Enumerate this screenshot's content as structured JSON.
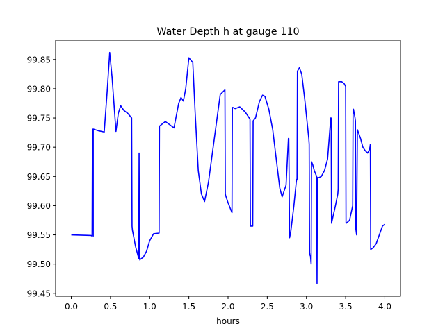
{
  "chart_data": {
    "type": "line",
    "title": "Water Depth h at gauge 110",
    "xlabel": "hours",
    "ylabel": "",
    "xlim": [
      -0.2,
      4.2
    ],
    "ylim": [
      99.445,
      99.883
    ],
    "grid": false,
    "xticks": [
      0.0,
      0.5,
      1.0,
      1.5,
      2.0,
      2.5,
      3.0,
      3.5,
      4.0
    ],
    "xtick_labels": [
      "0.0",
      "0.5",
      "1.0",
      "1.5",
      "2.0",
      "2.5",
      "3.0",
      "3.5",
      "4.0"
    ],
    "yticks": [
      99.45,
      99.5,
      99.55,
      99.6,
      99.65,
      99.7,
      99.75,
      99.8,
      99.85
    ],
    "ytick_labels": [
      "99.45",
      "99.50",
      "99.55",
      "99.60",
      "99.65",
      "99.70",
      "99.75",
      "99.80",
      "99.85"
    ],
    "series": [
      {
        "color": "#0000ff",
        "x": [
          0.0,
          0.25,
          0.265,
          0.27,
          0.28,
          0.28,
          0.35,
          0.42,
          0.46,
          0.49,
          0.52,
          0.57,
          0.6,
          0.63,
          0.67,
          0.72,
          0.77,
          0.775,
          0.78,
          0.82,
          0.86,
          0.865,
          0.87,
          0.875,
          0.88,
          0.92,
          0.96,
          1.0,
          1.05,
          1.12,
          1.125,
          1.2,
          1.26,
          1.31,
          1.37,
          1.4,
          1.43,
          1.46,
          1.5,
          1.55,
          1.58,
          1.62,
          1.66,
          1.7,
          1.75,
          1.8,
          1.85,
          1.9,
          1.96,
          1.965,
          1.97,
          2.0,
          2.05,
          2.055,
          2.06,
          2.09,
          2.15,
          2.22,
          2.28,
          2.285,
          2.31,
          2.315,
          2.32,
          2.35,
          2.4,
          2.44,
          2.47,
          2.52,
          2.57,
          2.61,
          2.66,
          2.69,
          2.74,
          2.77,
          2.775,
          2.785,
          2.8,
          2.84,
          2.87,
          2.875,
          2.88,
          2.885,
          2.91,
          2.94,
          2.98,
          3.03,
          3.035,
          3.04,
          3.045,
          3.05,
          3.06,
          3.065,
          3.08,
          3.1,
          3.13,
          3.135,
          3.14,
          3.16,
          3.19,
          3.23,
          3.27,
          3.31,
          3.315,
          3.32,
          3.37,
          3.4,
          3.405,
          3.41,
          3.45,
          3.48,
          3.5,
          3.505,
          3.51,
          3.55,
          3.59,
          3.595,
          3.6,
          3.62,
          3.625,
          3.63,
          3.635,
          3.64,
          3.65,
          3.69,
          3.72,
          3.75,
          3.78,
          3.8,
          3.81,
          3.815,
          3.82,
          3.85,
          3.89,
          3.93,
          3.97,
          4.0
        ],
        "y": [
          99.55,
          99.549,
          99.548,
          99.731,
          99.548,
          99.731,
          99.728,
          99.726,
          99.8,
          99.862,
          99.82,
          99.727,
          99.758,
          99.771,
          99.763,
          99.758,
          99.75,
          99.565,
          99.558,
          99.53,
          99.51,
          99.69,
          99.51,
          99.507,
          99.508,
          99.512,
          99.522,
          99.54,
          99.552,
          99.553,
          99.736,
          99.744,
          99.738,
          99.733,
          99.775,
          99.785,
          99.779,
          99.8,
          99.853,
          99.845,
          99.76,
          99.66,
          99.62,
          99.607,
          99.64,
          99.69,
          99.74,
          99.79,
          99.798,
          99.62,
          99.617,
          99.605,
          99.588,
          99.768,
          99.768,
          99.766,
          99.769,
          99.76,
          99.748,
          99.565,
          99.565,
          99.565,
          99.745,
          99.75,
          99.778,
          99.789,
          99.787,
          99.765,
          99.73,
          99.685,
          99.63,
          99.615,
          99.635,
          99.715,
          99.715,
          99.545,
          99.555,
          99.6,
          99.64,
          99.645,
          99.645,
          99.83,
          99.836,
          99.825,
          99.78,
          99.715,
          99.705,
          99.52,
          99.515,
          99.515,
          99.5,
          99.675,
          99.67,
          99.66,
          99.65,
          99.467,
          99.648,
          99.648,
          99.65,
          99.66,
          99.68,
          99.75,
          99.75,
          99.57,
          99.6,
          99.62,
          99.628,
          99.812,
          99.812,
          99.809,
          99.804,
          99.57,
          99.57,
          99.575,
          99.6,
          99.765,
          99.765,
          99.75,
          99.745,
          99.56,
          99.555,
          99.55,
          99.73,
          99.715,
          99.7,
          99.694,
          99.69,
          99.695,
          99.7,
          99.705,
          99.525,
          99.528,
          99.535,
          99.55,
          99.565,
          99.568
        ]
      }
    ]
  }
}
